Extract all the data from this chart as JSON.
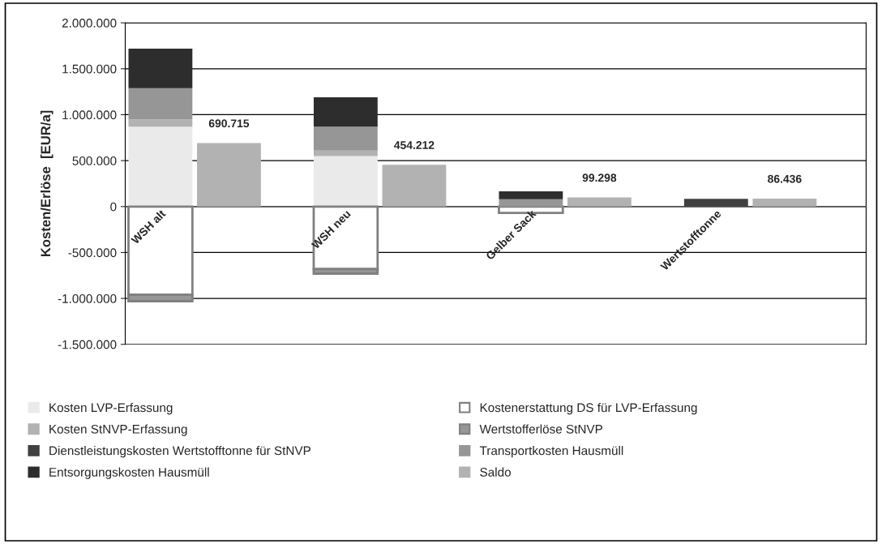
{
  "chart_data": {
    "type": "bar",
    "stacked": true,
    "ylabel": "Kosten/Erlöse  [EUR/a]",
    "categories": [
      "WSH alt",
      null,
      "WSH neu",
      null,
      "Gelber Sack",
      null,
      "Wertstofftonne",
      null
    ],
    "ylim": [
      -1500000,
      2000000
    ],
    "yticks": [
      {
        "value": -1500000,
        "label": "-1.500.000"
      },
      {
        "value": -1000000,
        "label": "-1.000.000"
      },
      {
        "value": -500000,
        "label": "-500.000"
      },
      0,
      {
        "value": 500000,
        "label": "500.000"
      },
      {
        "value": 1000000,
        "label": "1.000.000"
      },
      {
        "value": 1500000,
        "label": "1.500.000"
      },
      {
        "value": 2000000,
        "label": "2.000.000"
      }
    ],
    "grid": "y",
    "legend": "bottom",
    "series": [
      {
        "name": "Kosten LVP-Erfassung",
        "color": "#eaeaea",
        "values": [
          870000,
          null,
          550000,
          null,
          null,
          null,
          null,
          null
        ]
      },
      {
        "name": "Kostenerstattung DS für LVP-Erfassung",
        "color": "#ffffff",
        "values": [
          -960000,
          null,
          -680000,
          null,
          -70000,
          null,
          null,
          null
        ]
      },
      {
        "name": "Kosten StNVP-Erfassung",
        "color": "#b2b2b2",
        "values": [
          80000,
          null,
          60000,
          null,
          null,
          null,
          null,
          null
        ]
      },
      {
        "name": "Wertstofferlöse StNVP",
        "color": "#969696",
        "values": [
          -70000,
          null,
          -50000,
          null,
          null,
          null,
          null,
          null
        ]
      },
      {
        "name": "Dienstleistungskosten Wertstofftonne für StNVP",
        "color": "#404040",
        "values": [
          null,
          null,
          null,
          null,
          null,
          null,
          85000,
          null
        ]
      },
      {
        "name": "Transportkosten Hausmüll",
        "color": "#969696",
        "values": [
          340000,
          null,
          260000,
          null,
          80000,
          null,
          null,
          null
        ]
      },
      {
        "name": "Entsorgungskosten Hausmüll",
        "color": "#2d2d2d",
        "values": [
          430000,
          null,
          320000,
          null,
          85000,
          null,
          null,
          null
        ]
      },
      {
        "name": "Saldo",
        "color": "#b2b2b2",
        "values": [
          null,
          690715,
          null,
          454212,
          null,
          99298,
          null,
          86436
        ],
        "value_labels": [
          null,
          "690.715",
          null,
          "454.212",
          null,
          "99.298",
          null,
          "86.436"
        ]
      }
    ]
  }
}
